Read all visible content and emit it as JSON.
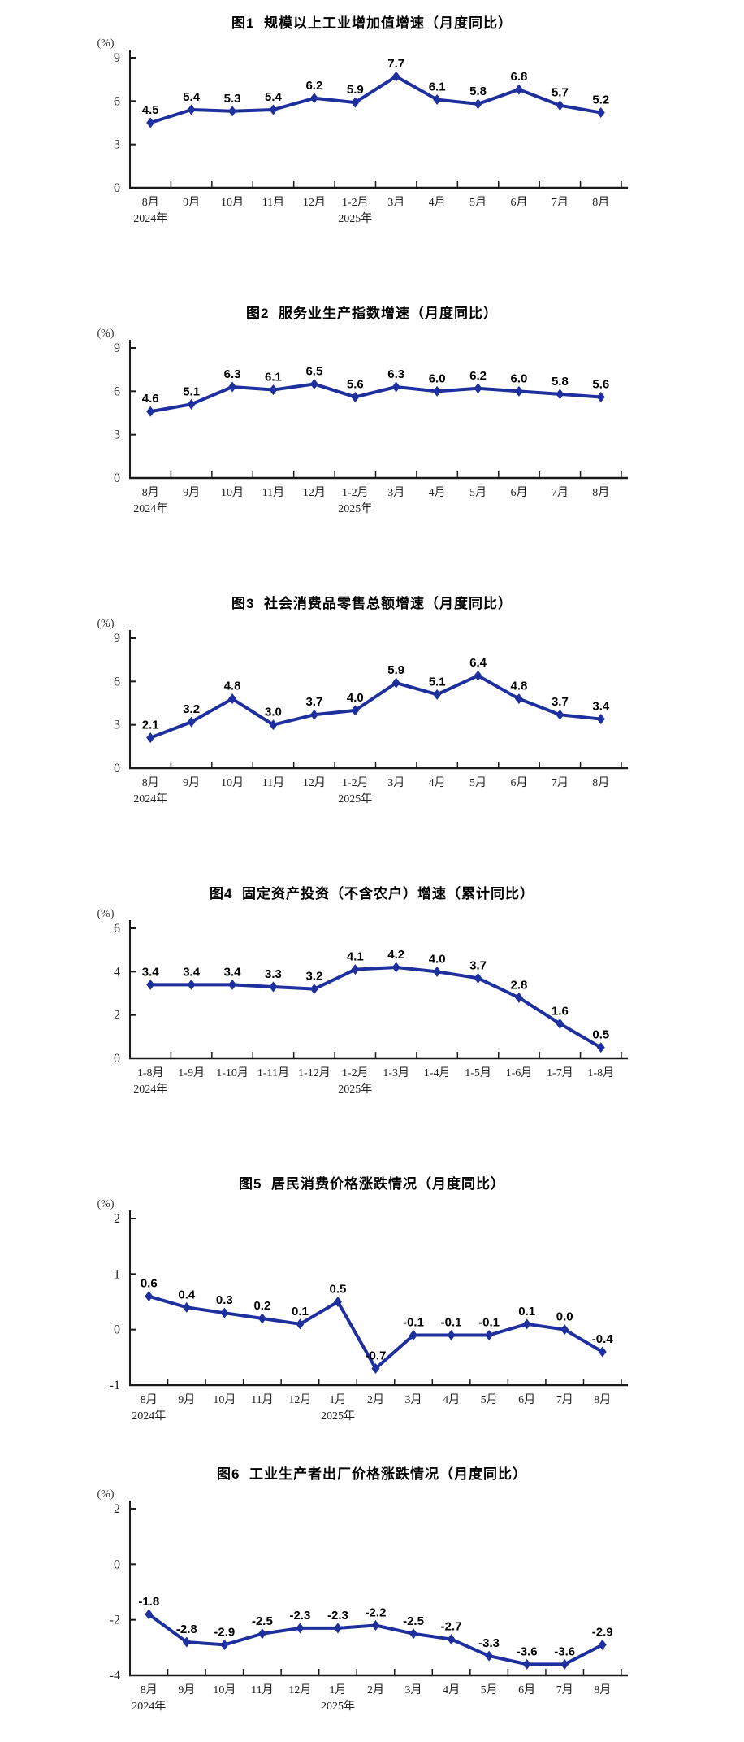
{
  "page": {
    "background_color": "#ffffff",
    "axis_color": "#1a1a1a",
    "line_color": "#1e2f9e"
  },
  "chart_data": [
    {
      "id": "fig1",
      "type": "line",
      "title": "图1  规模以上工业增加值增速（月度同比）",
      "unit_label": "(%)",
      "categories": [
        "8月",
        "9月",
        "10月",
        "11月",
        "12月",
        "1-2月",
        "3月",
        "4月",
        "5月",
        "6月",
        "7月",
        "8月"
      ],
      "year_markers": [
        {
          "index": 0,
          "label": "2024年"
        },
        {
          "index": 5,
          "label": "2025年"
        }
      ],
      "values": [
        4.5,
        5.4,
        5.3,
        5.4,
        6.2,
        5.9,
        7.7,
        6.1,
        5.8,
        6.8,
        5.7,
        5.2
      ],
      "ylim": [
        0,
        9
      ],
      "yticks": [
        0,
        3,
        6,
        9
      ],
      "line_color": "#1e2f9e",
      "marker": "diamond",
      "grid": false,
      "legend": "none"
    },
    {
      "id": "fig2",
      "type": "line",
      "title": "图2  服务业生产指数增速（月度同比）",
      "unit_label": "(%)",
      "categories": [
        "8月",
        "9月",
        "10月",
        "11月",
        "12月",
        "1-2月",
        "3月",
        "4月",
        "5月",
        "6月",
        "7月",
        "8月"
      ],
      "year_markers": [
        {
          "index": 0,
          "label": "2024年"
        },
        {
          "index": 5,
          "label": "2025年"
        }
      ],
      "values": [
        4.6,
        5.1,
        6.3,
        6.1,
        6.5,
        5.6,
        6.3,
        6.0,
        6.2,
        6.0,
        5.8,
        5.6
      ],
      "ylim": [
        0,
        9
      ],
      "yticks": [
        0,
        3,
        6,
        9
      ],
      "line_color": "#1e2f9e",
      "marker": "diamond",
      "grid": false,
      "legend": "none"
    },
    {
      "id": "fig3",
      "type": "line",
      "title": "图3  社会消费品零售总额增速（月度同比）",
      "unit_label": "(%)",
      "categories": [
        "8月",
        "9月",
        "10月",
        "11月",
        "12月",
        "1-2月",
        "3月",
        "4月",
        "5月",
        "6月",
        "7月",
        "8月"
      ],
      "year_markers": [
        {
          "index": 0,
          "label": "2024年"
        },
        {
          "index": 5,
          "label": "2025年"
        }
      ],
      "values": [
        2.1,
        3.2,
        4.8,
        3.0,
        3.7,
        4.0,
        5.9,
        5.1,
        6.4,
        4.8,
        3.7,
        3.4
      ],
      "ylim": [
        0,
        9
      ],
      "yticks": [
        0,
        3,
        6,
        9
      ],
      "line_color": "#1e2f9e",
      "marker": "diamond",
      "grid": false,
      "legend": "none"
    },
    {
      "id": "fig4",
      "type": "line",
      "title": "图4  固定资产投资（不含农户）增速（累计同比）",
      "unit_label": "(%)",
      "categories": [
        "1-8月",
        "1-9月",
        "1-10月",
        "1-11月",
        "1-12月",
        "1-2月",
        "1-3月",
        "1-4月",
        "1-5月",
        "1-6月",
        "1-7月",
        "1-8月"
      ],
      "year_markers": [
        {
          "index": 0,
          "label": "2024年"
        },
        {
          "index": 5,
          "label": "2025年"
        }
      ],
      "values": [
        3.4,
        3.4,
        3.4,
        3.3,
        3.2,
        4.1,
        4.2,
        4.0,
        3.7,
        2.8,
        1.6,
        0.5
      ],
      "ylim": [
        0,
        6
      ],
      "yticks": [
        0,
        2,
        4,
        6
      ],
      "line_color": "#1e2f9e",
      "marker": "diamond",
      "grid": false,
      "legend": "none"
    },
    {
      "id": "fig5",
      "type": "line",
      "title": "图5  居民消费价格涨跌情况（月度同比）",
      "unit_label": "(%)",
      "categories": [
        "8月",
        "9月",
        "10月",
        "11月",
        "12月",
        "1月",
        "2月",
        "3月",
        "4月",
        "5月",
        "6月",
        "7月",
        "8月"
      ],
      "year_markers": [
        {
          "index": 0,
          "label": "2024年"
        },
        {
          "index": 5,
          "label": "2025年"
        }
      ],
      "values": [
        0.6,
        0.4,
        0.3,
        0.2,
        0.1,
        0.5,
        -0.7,
        -0.1,
        -0.1,
        -0.1,
        0.1,
        0.0,
        -0.4
      ],
      "ylim": [
        -1,
        2
      ],
      "yticks": [
        -1,
        0,
        1,
        2
      ],
      "line_color": "#1e2f9e",
      "marker": "diamond",
      "grid": false,
      "legend": "none"
    },
    {
      "id": "fig6",
      "type": "line",
      "title": "图6  工业生产者出厂价格涨跌情况（月度同比）",
      "unit_label": "(%)",
      "categories": [
        "8月",
        "9月",
        "10月",
        "11月",
        "12月",
        "1月",
        "2月",
        "3月",
        "4月",
        "5月",
        "6月",
        "7月",
        "8月"
      ],
      "year_markers": [
        {
          "index": 0,
          "label": "2024年"
        },
        {
          "index": 5,
          "label": "2025年"
        }
      ],
      "values": [
        -1.8,
        -2.8,
        -2.9,
        -2.5,
        -2.3,
        -2.3,
        -2.2,
        -2.5,
        -2.7,
        -3.3,
        -3.6,
        -3.6,
        -2.9
      ],
      "ylim": [
        -4,
        2
      ],
      "yticks": [
        -4,
        -2,
        0,
        2
      ],
      "line_color": "#1e2f9e",
      "marker": "diamond",
      "grid": false,
      "legend": "none"
    }
  ]
}
